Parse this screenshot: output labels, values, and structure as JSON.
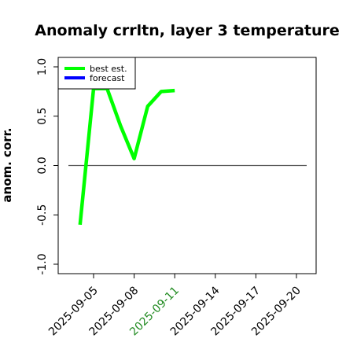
{
  "chart_data": {
    "type": "line",
    "title": "Anomaly crrltn, layer 3 temperature",
    "xlabel": "",
    "ylabel": "anom. corr.",
    "ylim": [
      -1.0,
      1.0
    ],
    "y_ticks": [
      "1.0",
      "0.5",
      "0.0",
      "-0.5",
      "-1.0"
    ],
    "y_tick_values": [
      1.0,
      0.5,
      0.0,
      -0.5,
      -1.0
    ],
    "x_tick_labels": [
      "2025-09-05",
      "2025-09-08",
      "2025-09-11",
      "2025-09-14",
      "2025-09-17",
      "2025-09-20"
    ],
    "highlighted_x_tick": "2025-09-11",
    "highlight_color": "#228B22",
    "reference_line": {
      "y": 0.0,
      "color": "#555555"
    },
    "series": [
      {
        "name": "best est.",
        "color": "#00ff00",
        "x": [
          "2025-09-04",
          "2025-09-05",
          "2025-09-06",
          "2025-09-07",
          "2025-09-08",
          "2025-09-09",
          "2025-09-10",
          "2025-09-11"
        ],
        "values": [
          -0.6,
          0.78,
          0.78,
          0.4,
          0.07,
          0.6,
          0.75,
          0.76
        ]
      },
      {
        "name": "forecast",
        "color": "#0000ff",
        "x": [],
        "values": []
      }
    ],
    "legend_position": "top-left",
    "grid": false
  }
}
